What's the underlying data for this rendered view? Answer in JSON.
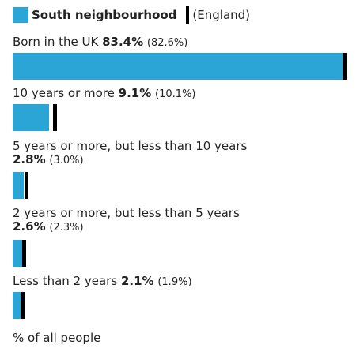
{
  "legend": {
    "primary": "South neighbourhood",
    "secondary": "(England)"
  },
  "colors": {
    "primary": "#2aa5d5",
    "comparison": "#000000"
  },
  "chart_data": {
    "type": "bar",
    "orientation": "horizontal",
    "categories": [
      "Born in the UK",
      "10 years or more",
      "5 years or more, but less than 10 years",
      "2 years or more, but less than 5 years",
      "Less than 2 years"
    ],
    "series": [
      {
        "name": "South neighbourhood",
        "values": [
          83.4,
          9.1,
          2.8,
          2.6,
          2.1
        ]
      },
      {
        "name": "(England)",
        "values": [
          82.6,
          10.1,
          3.0,
          2.3,
          1.9
        ]
      }
    ],
    "value_labels": [
      "83.4%",
      "9.1%",
      "2.8%",
      "2.6%",
      "2.1%"
    ],
    "comparison_labels": [
      "(82.6%)",
      "(10.1%)",
      "(3.0%)",
      "(2.3%)",
      "(1.9%)"
    ],
    "xlim": [
      0,
      83.4
    ],
    "xlabel": "% of all people",
    "grid": false
  }
}
